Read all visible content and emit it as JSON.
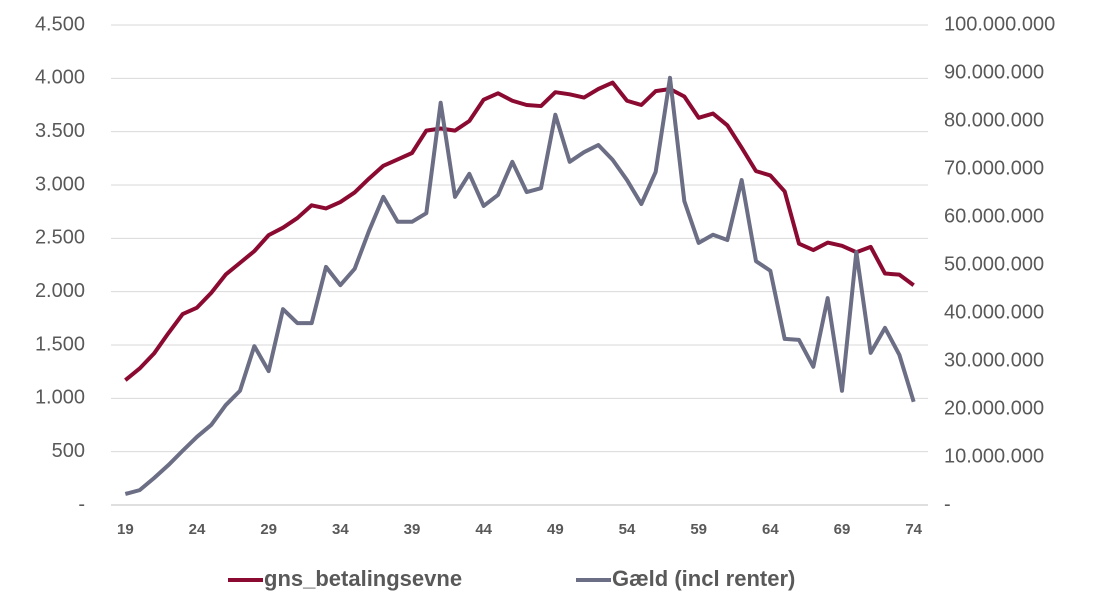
{
  "chart_data": {
    "type": "line",
    "x": [
      19,
      20,
      21,
      22,
      23,
      24,
      25,
      26,
      27,
      28,
      29,
      30,
      31,
      32,
      33,
      34,
      35,
      36,
      37,
      38,
      39,
      40,
      41,
      42,
      43,
      44,
      45,
      46,
      47,
      48,
      49,
      50,
      51,
      52,
      53,
      54,
      55,
      56,
      57,
      58,
      59,
      60,
      61,
      62,
      63,
      64,
      65,
      66,
      67,
      68,
      69,
      70,
      71,
      72,
      73,
      74
    ],
    "xlim": [
      18,
      75
    ],
    "xticks": [
      19,
      24,
      29,
      34,
      39,
      44,
      49,
      54,
      59,
      64,
      69,
      74
    ],
    "ylim": [
      0,
      4500
    ],
    "yticks": [
      {
        "value": 0,
        "label": "-"
      },
      500,
      {
        "value": 1000,
        "label": "1.000"
      },
      {
        "value": 1500,
        "label": "1.500"
      },
      {
        "value": 2000,
        "label": "2.000"
      },
      {
        "value": 2500,
        "label": "2.500"
      },
      {
        "value": 3000,
        "label": "3.000"
      },
      {
        "value": 3500,
        "label": "3.500"
      },
      {
        "value": 4000,
        "label": "4.000"
      },
      {
        "value": 4500,
        "label": "4.500"
      }
    ],
    "y2lim": [
      0,
      100000000
    ],
    "y2ticks": [
      {
        "value": 0,
        "label": "-"
      },
      {
        "value": 10000000,
        "label": "10.000.000"
      },
      {
        "value": 20000000,
        "label": "20.000.000"
      },
      {
        "value": 30000000,
        "label": "30.000.000"
      },
      {
        "value": 40000000,
        "label": "40.000.000"
      },
      {
        "value": 50000000,
        "label": "50.000.000"
      },
      {
        "value": 60000000,
        "label": "60.000.000"
      },
      {
        "value": 70000000,
        "label": "70.000.000"
      },
      {
        "value": 80000000,
        "label": "80.000.000"
      },
      {
        "value": 90000000,
        "label": "90.000.000"
      },
      {
        "value": 100000000,
        "label": "100.000.000"
      }
    ],
    "grid": true,
    "legend": "bottom",
    "series": [
      {
        "name": "gns_betalingsevne",
        "color": "#8b0a32",
        "values": [
          1170,
          1280,
          1420,
          1610,
          1790,
          1850,
          1990,
          2160,
          2270,
          2380,
          2530,
          2600,
          2690,
          2810,
          2780,
          2840,
          2930,
          3060,
          3180,
          3240,
          3300,
          3510,
          3530,
          3510,
          3600,
          3800,
          3860,
          3790,
          3750,
          3740,
          3870,
          3850,
          3820,
          3900,
          3960,
          3790,
          3750,
          3880,
          3900,
          3830,
          3630,
          3670,
          3560,
          3350,
          3130,
          3090,
          2940,
          2450,
          2390,
          2460,
          2430,
          2370,
          2420,
          2170,
          2160,
          2060
        ]
      },
      {
        "name": "Gæld (incl renter)",
        "color": "#6b6e84",
        "axis": "y2",
        "values": [
          2300000,
          3100000,
          5600000,
          8300000,
          11300000,
          14200000,
          16700000,
          20800000,
          23800000,
          33100000,
          27900000,
          40800000,
          37900000,
          37900000,
          49600000,
          45800000,
          49200000,
          57100000,
          64200000,
          59000000,
          59000000,
          60800000,
          83800000,
          64200000,
          69000000,
          62300000,
          64600000,
          71500000,
          65200000,
          66000000,
          81300000,
          71500000,
          73500000,
          75000000,
          71900000,
          67700000,
          62700000,
          69400000,
          89000000,
          63300000,
          54600000,
          56300000,
          55200000,
          67700000,
          50800000,
          48800000,
          34600000,
          34400000,
          28800000,
          43100000,
          23800000,
          52700000,
          31700000,
          36900000,
          31300000,
          21500000
        ]
      }
    ]
  }
}
